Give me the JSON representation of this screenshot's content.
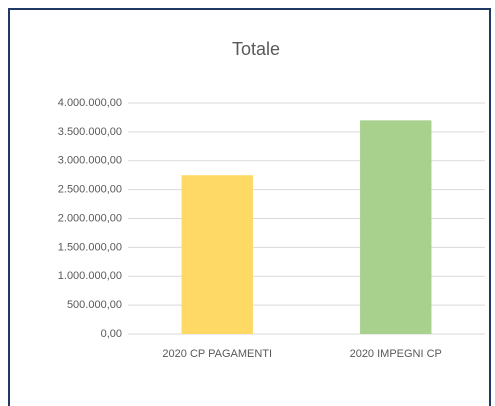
{
  "chart_data": {
    "type": "bar",
    "title": "Totale",
    "categories": [
      "2020 CP PAGAMENTI",
      "2020 IMPEGNI CP"
    ],
    "values": [
      2750000,
      3700000
    ],
    "colors": [
      "#ffd966",
      "#a9d18e"
    ],
    "ylim": [
      0,
      4000000
    ],
    "yticks": [
      {
        "value": 0,
        "label": "0,00"
      },
      {
        "value": 500000,
        "label": "500.000,00"
      },
      {
        "value": 1000000,
        "label": "1.000.000,00"
      },
      {
        "value": 1500000,
        "label": "1.500.000,00"
      },
      {
        "value": 2000000,
        "label": "2.000.000,00"
      },
      {
        "value": 2500000,
        "label": "2.500.000,00"
      },
      {
        "value": 3000000,
        "label": "3.000.000,00"
      },
      {
        "value": 3500000,
        "label": "3.500.000,00"
      },
      {
        "value": 4000000,
        "label": "4.000.000,00"
      }
    ],
    "grid": true
  }
}
